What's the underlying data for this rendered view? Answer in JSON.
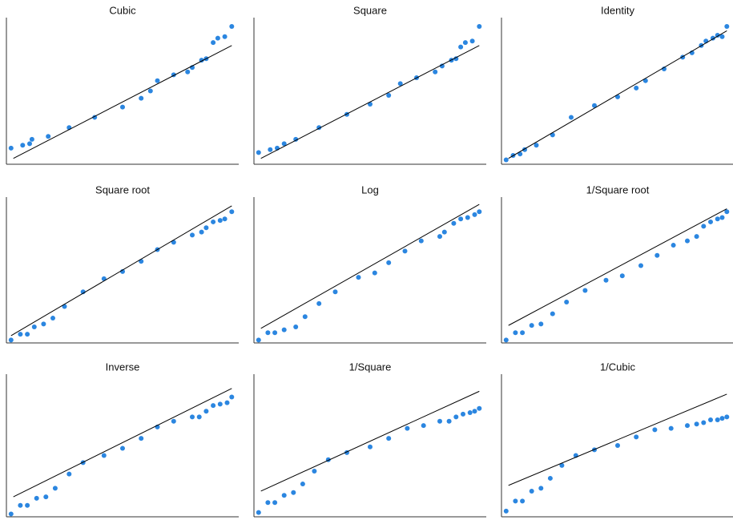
{
  "chart_data": [
    {
      "type": "scatter",
      "title": "Cubic",
      "color": "#2b86e0",
      "line_color": "#000000",
      "xlim": [
        0,
        100
      ],
      "ylim": [
        0,
        100
      ],
      "x": [
        2,
        7,
        10,
        11,
        18,
        27,
        38,
        50,
        58,
        62,
        65,
        72,
        78,
        80,
        84,
        86,
        89,
        91,
        94,
        97
      ],
      "y": [
        11,
        13,
        14,
        17,
        19,
        25,
        32,
        39,
        45,
        50,
        57,
        61,
        63,
        66,
        71,
        72,
        83,
        86,
        87,
        94
      ],
      "line": {
        "x": [
          3,
          97
        ],
        "y": [
          4,
          81
        ]
      }
    },
    {
      "type": "scatter",
      "title": "Square",
      "color": "#2b86e0",
      "line_color": "#000000",
      "xlim": [
        0,
        100
      ],
      "ylim": [
        0,
        100
      ],
      "x": [
        2,
        7,
        10,
        13,
        18,
        28,
        40,
        50,
        58,
        63,
        70,
        78,
        81,
        85,
        87,
        89,
        91,
        94,
        97
      ],
      "y": [
        8,
        10,
        11,
        14,
        17,
        25,
        34,
        41,
        47,
        55,
        59,
        63,
        67,
        71,
        72,
        80,
        83,
        84,
        94
      ],
      "line": {
        "x": [
          3,
          97
        ],
        "y": [
          4,
          81
        ]
      }
    },
    {
      "type": "scatter",
      "title": "Identity",
      "color": "#2b86e0",
      "line_color": "#000000",
      "xlim": [
        0,
        100
      ],
      "ylim": [
        0,
        100
      ],
      "x": [
        2,
        5,
        8,
        10,
        15,
        22,
        30,
        40,
        50,
        58,
        62,
        70,
        78,
        82,
        86,
        88,
        91,
        93,
        95,
        97
      ],
      "y": [
        3,
        6,
        7,
        10,
        13,
        20,
        32,
        40,
        46,
        52,
        57,
        65,
        73,
        76,
        81,
        84,
        86,
        88,
        87,
        94
      ],
      "line": {
        "x": [
          3,
          97
        ],
        "y": [
          4,
          91
        ]
      }
    },
    {
      "type": "scatter",
      "title": "Square root",
      "color": "#2b86e0",
      "line_color": "#000000",
      "xlim": [
        0,
        100
      ],
      "ylim": [
        0,
        100
      ],
      "x": [
        2,
        6,
        9,
        12,
        16,
        20,
        25,
        33,
        42,
        50,
        58,
        65,
        72,
        80,
        84,
        86,
        89,
        92,
        94,
        97
      ],
      "y": [
        2,
        6,
        6,
        11,
        13,
        17,
        25,
        35,
        44,
        49,
        56,
        64,
        69,
        74,
        76,
        79,
        83,
        84,
        85,
        90
      ],
      "line": {
        "x": [
          2,
          97
        ],
        "y": [
          5,
          94
        ]
      }
    },
    {
      "type": "scatter",
      "title": "Log",
      "color": "#2b86e0",
      "line_color": "#000000",
      "xlim": [
        0,
        100
      ],
      "ylim": [
        0,
        100
      ],
      "x": [
        2,
        6,
        9,
        13,
        18,
        22,
        28,
        35,
        45,
        52,
        58,
        65,
        72,
        80,
        82,
        86,
        89,
        92,
        95,
        97
      ],
      "y": [
        2,
        7,
        7,
        9,
        11,
        18,
        27,
        35,
        45,
        48,
        55,
        63,
        70,
        73,
        76,
        82,
        85,
        86,
        88,
        90
      ],
      "line": {
        "x": [
          3,
          97
        ],
        "y": [
          10,
          95
        ]
      }
    },
    {
      "type": "scatter",
      "title": "1/Square root",
      "color": "#2b86e0",
      "line_color": "#000000",
      "xlim": [
        0,
        100
      ],
      "ylim": [
        0,
        100
      ],
      "x": [
        2,
        6,
        9,
        13,
        17,
        22,
        28,
        36,
        45,
        52,
        60,
        67,
        74,
        80,
        84,
        87,
        90,
        93,
        95,
        97
      ],
      "y": [
        2,
        7,
        7,
        12,
        13,
        20,
        28,
        36,
        43,
        46,
        53,
        60,
        67,
        70,
        73,
        80,
        83,
        85,
        86,
        90
      ],
      "line": {
        "x": [
          3,
          97
        ],
        "y": [
          12,
          92
        ]
      }
    },
    {
      "type": "scatter",
      "title": "Inverse",
      "color": "#2b86e0",
      "line_color": "#000000",
      "xlim": [
        0,
        100
      ],
      "ylim": [
        0,
        100
      ],
      "x": [
        2,
        6,
        9,
        13,
        17,
        21,
        27,
        33,
        42,
        50,
        58,
        65,
        72,
        80,
        83,
        86,
        89,
        92,
        95,
        97
      ],
      "y": [
        2,
        8,
        8,
        13,
        14,
        20,
        30,
        38,
        43,
        48,
        55,
        63,
        67,
        70,
        70,
        74,
        78,
        79,
        80,
        84
      ],
      "line": {
        "x": [
          3,
          97
        ],
        "y": [
          14,
          90
        ]
      }
    },
    {
      "type": "scatter",
      "title": "1/Square",
      "color": "#2b86e0",
      "line_color": "#000000",
      "xlim": [
        0,
        100
      ],
      "ylim": [
        0,
        100
      ],
      "x": [
        2,
        6,
        9,
        13,
        17,
        21,
        26,
        32,
        40,
        50,
        58,
        66,
        73,
        80,
        84,
        87,
        90,
        93,
        95,
        97
      ],
      "y": [
        3,
        10,
        10,
        15,
        17,
        23,
        32,
        40,
        45,
        49,
        55,
        62,
        64,
        67,
        67,
        70,
        72,
        73,
        74,
        76
      ],
      "line": {
        "x": [
          3,
          97
        ],
        "y": [
          18,
          88
        ]
      }
    },
    {
      "type": "scatter",
      "title": "1/Cubic",
      "color": "#2b86e0",
      "line_color": "#000000",
      "xlim": [
        0,
        100
      ],
      "ylim": [
        0,
        100
      ],
      "x": [
        2,
        6,
        9,
        13,
        17,
        21,
        26,
        32,
        40,
        50,
        58,
        66,
        73,
        80,
        84,
        87,
        90,
        93,
        95,
        97
      ],
      "y": [
        4,
        11,
        11,
        18,
        20,
        27,
        36,
        43,
        47,
        50,
        56,
        61,
        62,
        64,
        65,
        66,
        68,
        68,
        69,
        70
      ],
      "line": {
        "x": [
          3,
          97
        ],
        "y": [
          22,
          86
        ]
      }
    }
  ]
}
